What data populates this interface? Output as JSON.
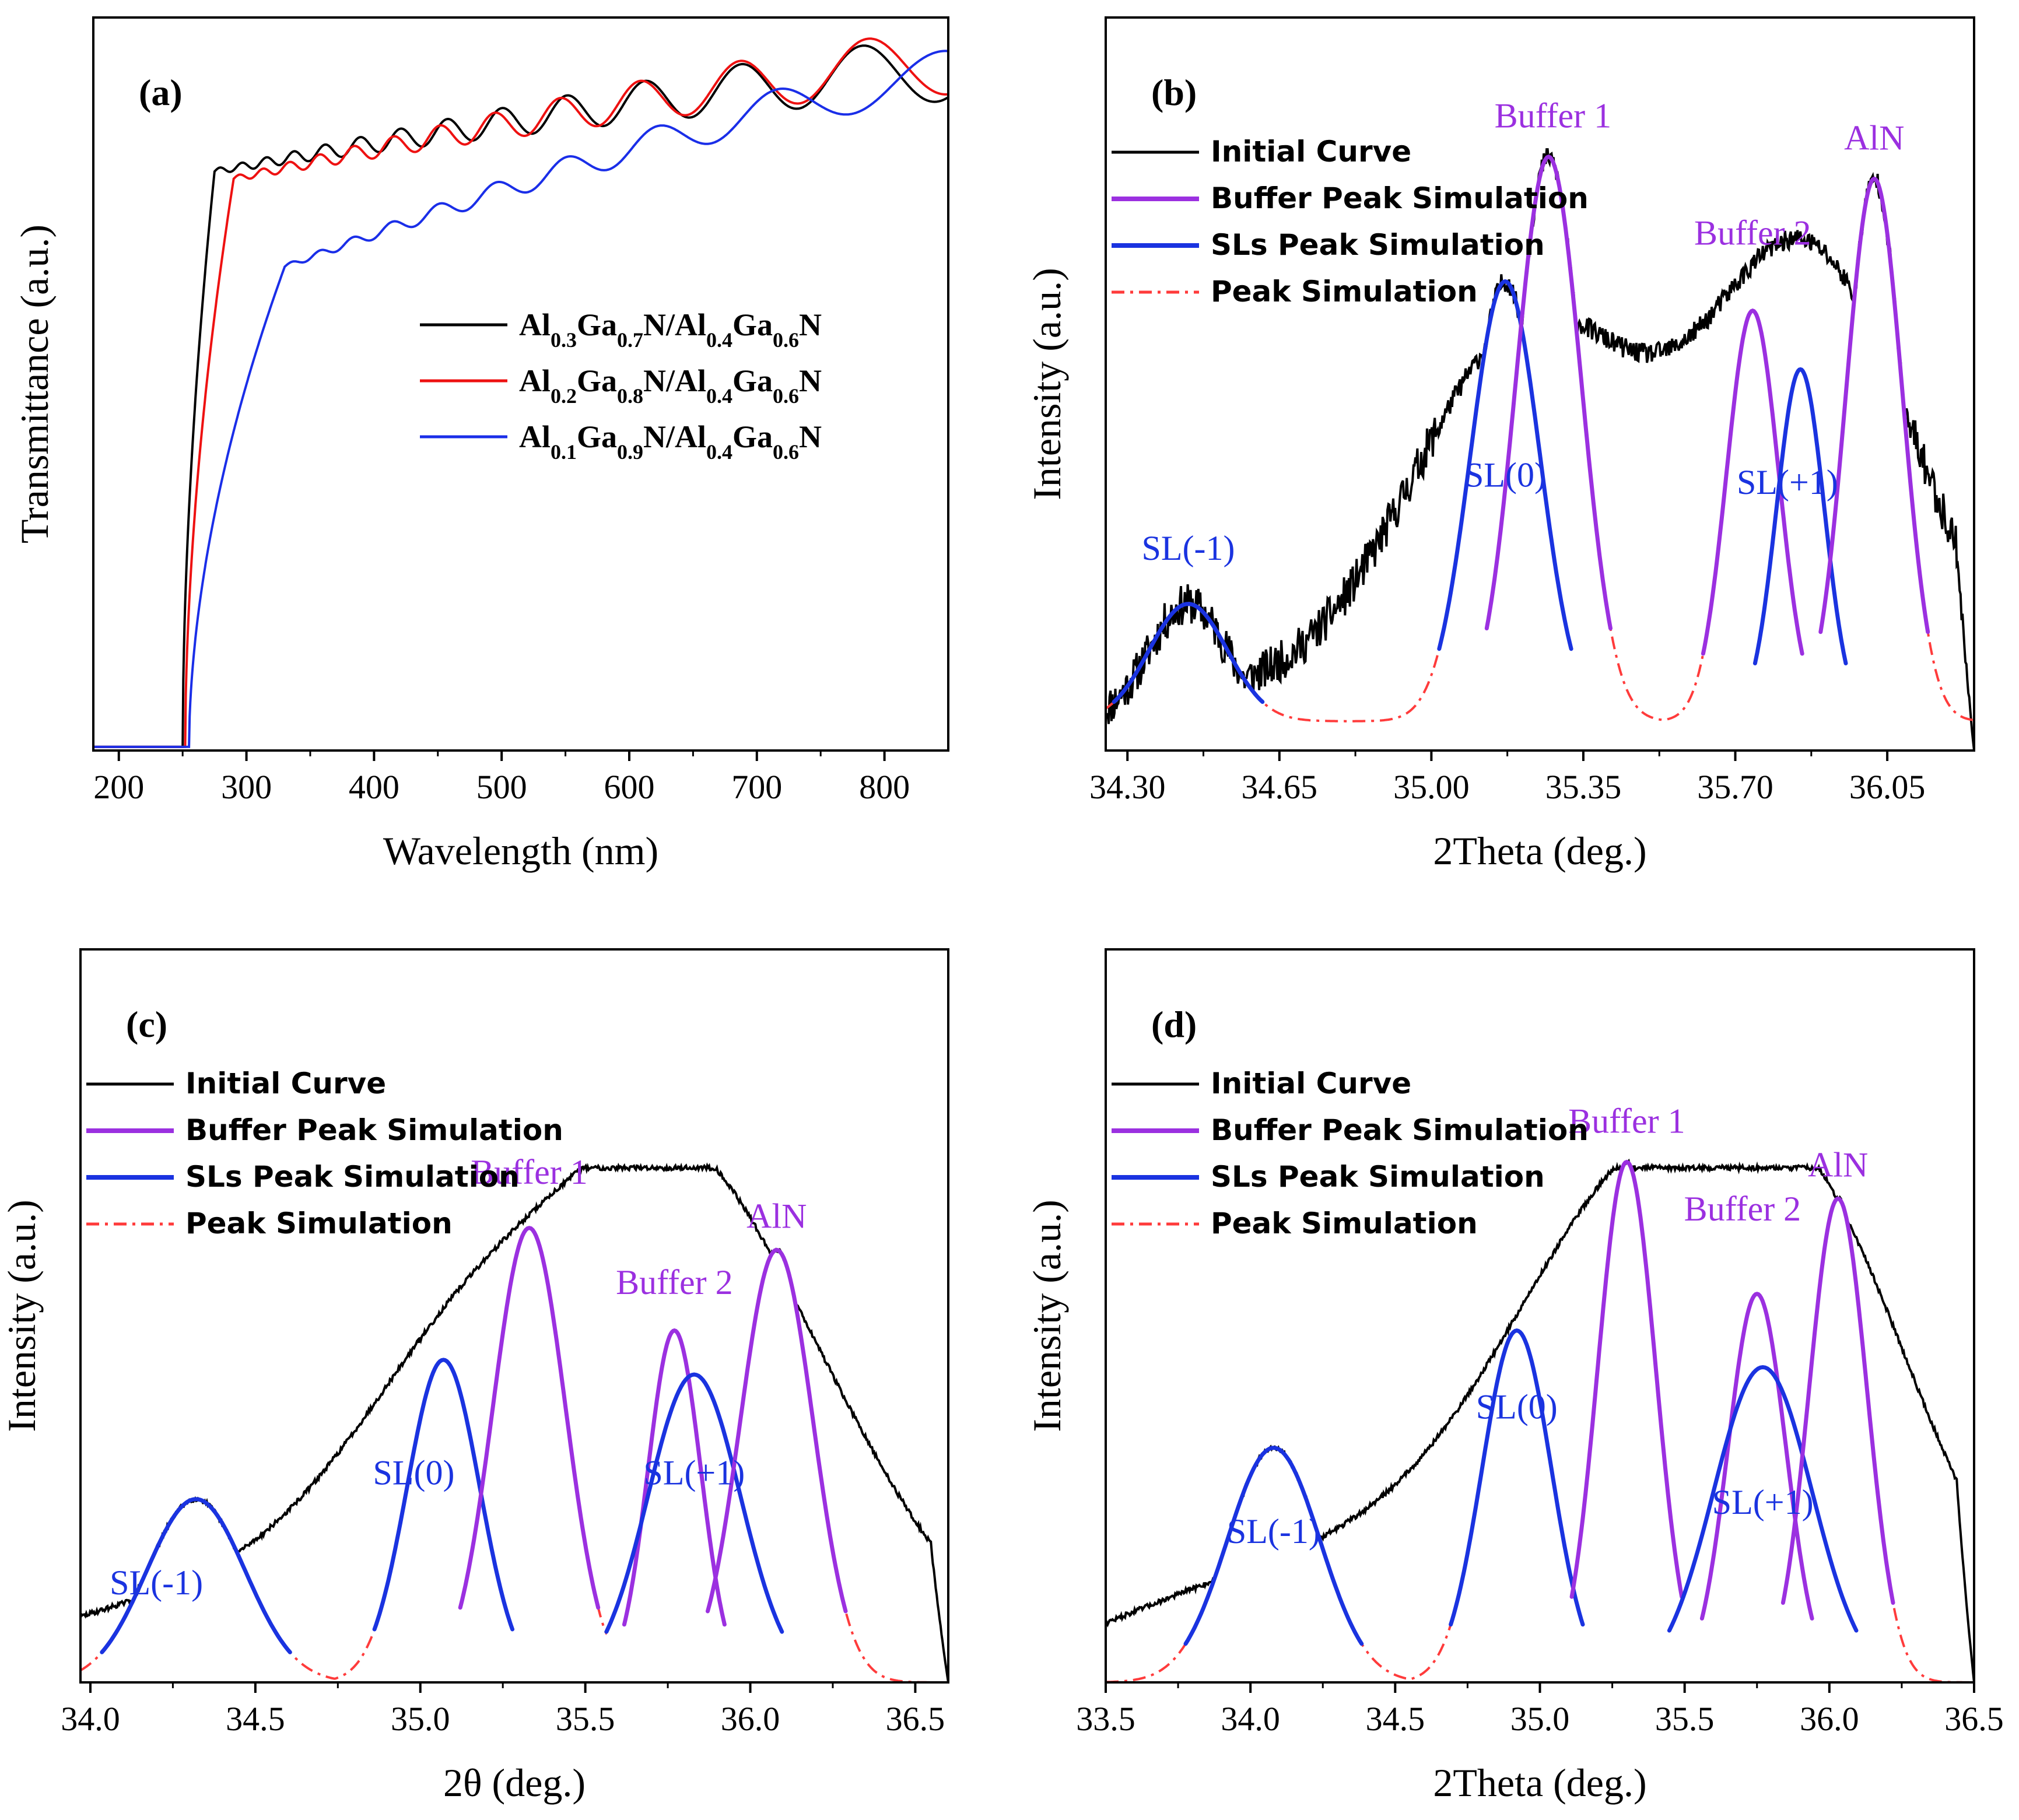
{
  "colors": {
    "initial": "#000000",
    "buffer": "#9b30e0",
    "sls": "#1a33e0",
    "sim": "#ff3b3b",
    "series_a1": "#000000",
    "series_a2": "#ee1111",
    "series_a3": "#1a2ee8",
    "ann_sl": "#1a33e0",
    "ann_buffer": "#9b30e0"
  },
  "chart_data": [
    {
      "id": "a",
      "type": "line",
      "panel_label": "(a)",
      "xlabel": "Wavelength (nm)",
      "ylabel": "Transmittance (a.u.)",
      "xlim": [
        180,
        850
      ],
      "ylim": [
        0,
        1
      ],
      "xticks": [
        200,
        300,
        400,
        500,
        600,
        700,
        800
      ],
      "xtick_labels": [
        "200",
        "300",
        "400",
        "500",
        "600",
        "700",
        "800"
      ],
      "legend": [
        "Al0.3Ga0.7N/Al0.4Ga0.6N",
        "Al0.2Ga0.8N/Al0.4Ga0.6N",
        "Al0.1Ga0.9N/Al0.4Ga0.6N"
      ],
      "legend_parts": [
        [
          [
            "Al",
            ""
          ],
          [
            "0.3",
            "sub"
          ],
          [
            "Ga",
            ""
          ],
          [
            "0.7",
            "sub"
          ],
          [
            "N/Al",
            ""
          ],
          [
            "0.4",
            "sub"
          ],
          [
            "Ga",
            ""
          ],
          [
            "0.6",
            "sub"
          ],
          [
            "N",
            ""
          ]
        ],
        [
          [
            "Al",
            ""
          ],
          [
            "0.2",
            "sub"
          ],
          [
            "Ga",
            ""
          ],
          [
            "0.8",
            "sub"
          ],
          [
            "N/Al",
            ""
          ],
          [
            "0.4",
            "sub"
          ],
          [
            "Ga",
            ""
          ],
          [
            "0.6",
            "sub"
          ],
          [
            "N",
            ""
          ]
        ],
        [
          [
            "Al",
            ""
          ],
          [
            "0.1",
            "sub"
          ],
          [
            "Ga",
            ""
          ],
          [
            "0.9",
            "sub"
          ],
          [
            "N/Al",
            ""
          ],
          [
            "0.4",
            "sub"
          ],
          [
            "Ga",
            ""
          ],
          [
            "0.6",
            "sub"
          ],
          [
            "N",
            ""
          ]
        ]
      ],
      "series": [
        {
          "name": "Al0.3Ga0.7N/Al0.4Ga0.6N",
          "edge": 250,
          "knee": 275,
          "t_knee": 0.79,
          "t_end": 0.93,
          "amp_end": 0.045,
          "period": 16
        },
        {
          "name": "Al0.2Ga0.8N/Al0.4Ga0.6N",
          "edge": 252,
          "knee": 290,
          "t_knee": 0.78,
          "t_end": 0.94,
          "amp_end": 0.045,
          "period": 17
        },
        {
          "name": "Al0.1Ga0.9N/Al0.4Ga0.6N",
          "edge": 255,
          "knee": 330,
          "t_knee": 0.66,
          "t_end": 0.92,
          "amp_end": 0.035,
          "period": 20
        }
      ]
    },
    {
      "id": "b",
      "type": "line",
      "panel_label": "(b)",
      "xlabel": "2Theta (deg.)",
      "ylabel": "Intensity (a.u.)",
      "xlim": [
        34.25,
        36.25
      ],
      "ylim": [
        0,
        1
      ],
      "xticks": [
        34.3,
        34.65,
        35.0,
        35.35,
        35.7,
        36.05
      ],
      "xtick_labels": [
        "34.30",
        "34.65",
        "35.00",
        "35.35",
        "35.70",
        "36.05"
      ],
      "legend": [
        "Initial Curve",
        "Buffer Peak Simulation",
        "SLs Peak Simulation",
        "Peak Simulation"
      ],
      "baseline": 0.04,
      "peaks": [
        {
          "label": "SL(-1)",
          "kind": "sls",
          "center": 34.44,
          "height": 0.16,
          "width": 0.09
        },
        {
          "label": "SL(0)",
          "kind": "sls",
          "center": 35.17,
          "height": 0.6,
          "width": 0.08
        },
        {
          "label": "Buffer 1",
          "kind": "buffer",
          "center": 35.27,
          "height": 0.77,
          "width": 0.075
        },
        {
          "label": "Buffer 2",
          "kind": "buffer",
          "center": 35.74,
          "height": 0.56,
          "width": 0.06
        },
        {
          "label": "SL(+1)",
          "kind": "sls",
          "center": 35.85,
          "height": 0.48,
          "width": 0.055
        },
        {
          "label": "AlN",
          "kind": "buffer",
          "center": 36.02,
          "height": 0.74,
          "width": 0.065
        }
      ],
      "annotations": [
        {
          "text": "SL(-1)",
          "kind": "sls",
          "x": 34.44,
          "y": 0.26
        },
        {
          "text": "SL(0)",
          "kind": "sls",
          "x": 35.17,
          "y": 0.36
        },
        {
          "text": "SL(+1)",
          "kind": "sls",
          "x": 35.82,
          "y": 0.35
        },
        {
          "text": "Buffer 1",
          "kind": "buffer",
          "x": 35.28,
          "y": 0.85
        },
        {
          "text": "Buffer 2",
          "kind": "buffer",
          "x": 35.74,
          "y": 0.69
        },
        {
          "text": "AlN",
          "kind": "buffer",
          "x": 36.02,
          "y": 0.82
        }
      ]
    },
    {
      "id": "c",
      "type": "line",
      "panel_label": "(c)",
      "xlabel": "2θ (deg.)",
      "ylabel": "Intensity (a.u.)",
      "xlim": [
        33.97,
        36.6
      ],
      "ylim": [
        0,
        1
      ],
      "xticks": [
        34.0,
        34.5,
        35.0,
        35.5,
        36.0,
        36.5
      ],
      "xtick_labels": [
        "34.0",
        "34.5",
        "35.0",
        "35.5",
        "36.0",
        "36.5"
      ],
      "legend": [
        "Initial Curve",
        "Buffer Peak Simulation",
        "SLs Peak Simulation",
        "Peak Simulation"
      ],
      "baseline": 0.0,
      "peaks": [
        {
          "label": "SL(-1)",
          "kind": "sls",
          "center": 34.32,
          "height": 0.25,
          "width": 0.15
        },
        {
          "label": "SL(0)",
          "kind": "sls",
          "center": 35.07,
          "height": 0.44,
          "width": 0.11
        },
        {
          "label": "Buffer 1",
          "kind": "buffer",
          "center": 35.33,
          "height": 0.62,
          "width": 0.11
        },
        {
          "label": "Buffer 2",
          "kind": "buffer",
          "center": 35.77,
          "height": 0.48,
          "width": 0.08
        },
        {
          "label": "SL(+1)",
          "kind": "sls",
          "center": 35.83,
          "height": 0.42,
          "width": 0.14
        },
        {
          "label": "AlN",
          "kind": "buffer",
          "center": 36.08,
          "height": 0.59,
          "width": 0.11
        }
      ],
      "annotations": [
        {
          "text": "SL(-1)",
          "kind": "sls",
          "x": 34.2,
          "y": 0.12
        },
        {
          "text": "SL(0)",
          "kind": "sls",
          "x": 34.98,
          "y": 0.27
        },
        {
          "text": "SL(+1)",
          "kind": "sls",
          "x": 35.83,
          "y": 0.27
        },
        {
          "text": "Buffer 1",
          "kind": "buffer",
          "x": 35.33,
          "y": 0.68
        },
        {
          "text": "Buffer 2",
          "kind": "buffer",
          "x": 35.77,
          "y": 0.53
        },
        {
          "text": "AlN",
          "kind": "buffer",
          "x": 36.08,
          "y": 0.62
        }
      ]
    },
    {
      "id": "d",
      "type": "line",
      "panel_label": "(d)",
      "xlabel": "2Theta (deg.)",
      "ylabel": "Intensity (a.u.)",
      "xlim": [
        33.5,
        36.5
      ],
      "ylim": [
        0,
        1
      ],
      "xticks": [
        33.5,
        34.0,
        34.5,
        35.0,
        35.5,
        36.0,
        36.5
      ],
      "xtick_labels": [
        "33.5",
        "34.0",
        "34.5",
        "35.0",
        "35.5",
        "36.0",
        "36.5"
      ],
      "legend": [
        "Initial Curve",
        "Buffer Peak Simulation",
        "SLs Peak Simulation",
        "Peak Simulation"
      ],
      "baseline": 0.0,
      "peaks": [
        {
          "label": "SL(-1)",
          "kind": "sls",
          "center": 34.08,
          "height": 0.32,
          "width": 0.16
        },
        {
          "label": "SL(0)",
          "kind": "sls",
          "center": 34.92,
          "height": 0.48,
          "width": 0.12
        },
        {
          "label": "Buffer 1",
          "kind": "buffer",
          "center": 35.3,
          "height": 0.71,
          "width": 0.1
        },
        {
          "label": "Buffer 2",
          "kind": "buffer",
          "center": 35.75,
          "height": 0.53,
          "width": 0.1
        },
        {
          "label": "SL(+1)",
          "kind": "sls",
          "center": 35.77,
          "height": 0.43,
          "width": 0.17
        },
        {
          "label": "AlN",
          "kind": "buffer",
          "center": 36.03,
          "height": 0.66,
          "width": 0.1
        }
      ],
      "annotations": [
        {
          "text": "SL(-1)",
          "kind": "sls",
          "x": 34.08,
          "y": 0.19
        },
        {
          "text": "SL(0)",
          "kind": "sls",
          "x": 34.92,
          "y": 0.36
        },
        {
          "text": "SL(+1)",
          "kind": "sls",
          "x": 35.77,
          "y": 0.23
        },
        {
          "text": "Buffer 1",
          "kind": "buffer",
          "x": 35.3,
          "y": 0.75
        },
        {
          "text": "Buffer 2",
          "kind": "buffer",
          "x": 35.7,
          "y": 0.63
        },
        {
          "text": "AlN",
          "kind": "buffer",
          "x": 36.03,
          "y": 0.69
        }
      ]
    }
  ]
}
